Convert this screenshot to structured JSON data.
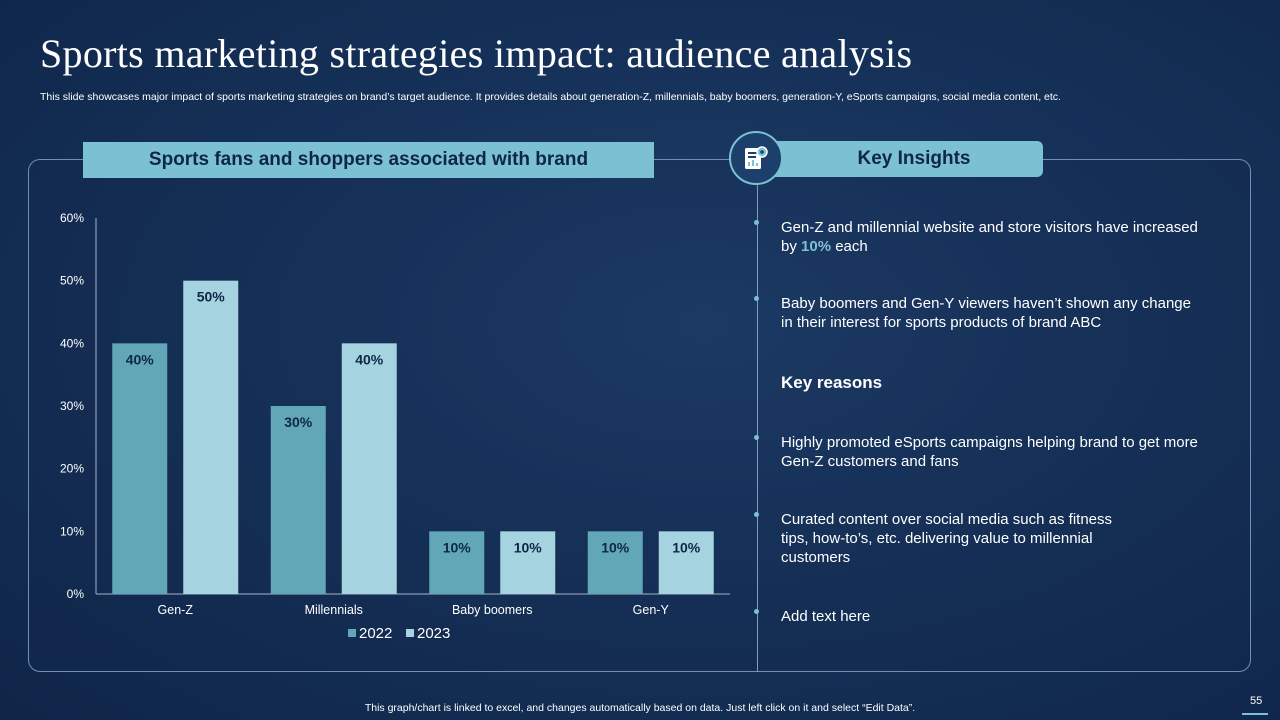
{
  "title": "Sports marketing strategies impact: audience analysis",
  "subtitle": "This slide showcases major impact of sports marketing strategies on brand’s target audience. It provides details about generation-Z, millennials, baby boomers, generation-Y, eSports campaigns, social media content, etc.",
  "left_header": "Sports fans and shoppers associated with brand",
  "right_header": "Key Insights",
  "insights": [
    {
      "pre": "Gen-Z and millennial website and store visitors have increased by ",
      "highlight": "10%",
      "post": " each"
    },
    {
      "pre": "Baby boomers and Gen-Y viewers haven’t shown any change in their interest for sports products of brand ABC",
      "highlight": "",
      "post": ""
    }
  ],
  "key_reasons_title": "Key reasons",
  "reasons": [
    "Highly promoted eSports campaigns helping brand to get more Gen-Z customers and fans",
    "Curated content over social media such as fitness tips, how-to’s, etc. delivering value to millennial customers",
    "Add text here"
  ],
  "footer": "This graph/chart is linked to excel, and changes automatically based on data. Just left click on it and select “Edit Data”.",
  "page_number": "55",
  "colors": {
    "series_2022": "#62a7b7",
    "series_2023": "#a6d3e0",
    "accent": "#7cc1d3",
    "label_text": "#0e2747"
  },
  "chart_data": {
    "type": "bar",
    "categories": [
      "Gen-Z",
      "Millennials",
      "Baby boomers",
      "Gen-Y"
    ],
    "series": [
      {
        "name": "2022",
        "values": [
          40,
          30,
          10,
          10
        ]
      },
      {
        "name": "2023",
        "values": [
          50,
          40,
          10,
          10
        ]
      }
    ],
    "value_labels": [
      [
        "40%",
        "30%",
        "10%",
        "10%"
      ],
      [
        "50%",
        "40%",
        "10%",
        "10%"
      ]
    ],
    "yticks": [
      "0%",
      "10%",
      "20%",
      "30%",
      "40%",
      "50%",
      "60%"
    ],
    "ylim": [
      0,
      60
    ],
    "title": "",
    "xlabel": "",
    "ylabel": "",
    "legend": "bottom-center"
  }
}
